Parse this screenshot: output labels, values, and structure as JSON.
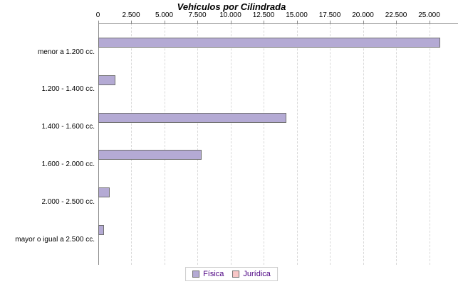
{
  "chart_data": {
    "type": "bar",
    "orientation": "horizontal",
    "title": "Vehículos por Cilindrada",
    "categories": [
      "menor a 1.200 cc.",
      "1.200 - 1.400 cc.",
      "1.400 - 1.600 cc.",
      "1.600 - 2.000 cc.",
      "2.000 - 2.500 cc.",
      "mayor o igual a 2.500 cc."
    ],
    "series": [
      {
        "name": "Física",
        "color": "#b4aad4",
        "border_color": "#6f6f6f",
        "values": [
          25800,
          1300,
          14200,
          7800,
          870,
          450
        ]
      },
      {
        "name": "Jurídica",
        "color": "#f9c7c7",
        "border_color": "#6f6f6f",
        "values": [
          0,
          0,
          0,
          0,
          0,
          0
        ]
      }
    ],
    "x_ticks": [
      "0",
      "2.500",
      "5.000",
      "7.500",
      "10.000",
      "12.500",
      "15.000",
      "17.500",
      "20.000",
      "22.500",
      "25.000"
    ],
    "x_tick_values": [
      0,
      2500,
      5000,
      7500,
      10000,
      12500,
      15000,
      17500,
      20000,
      22500,
      25000
    ],
    "xlim": [
      0,
      27200
    ],
    "grid": "vertical-dashed",
    "axis_position": "top",
    "legend_position": "bottom"
  },
  "legend": {
    "items": [
      {
        "label": "Física",
        "color": "#b4aad4"
      },
      {
        "label": "Jurídica",
        "color": "#f9c7c7"
      }
    ]
  }
}
